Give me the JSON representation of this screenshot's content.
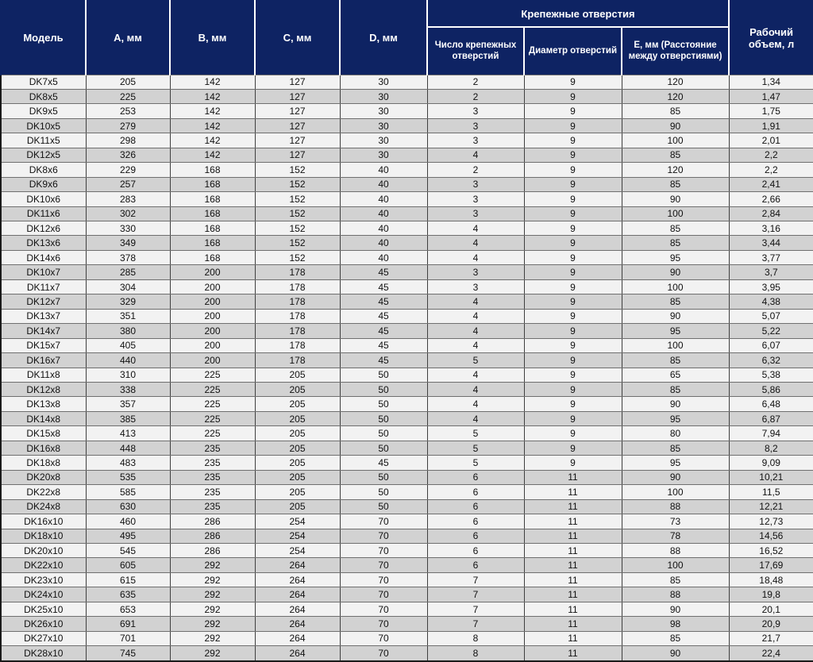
{
  "colors": {
    "header_bg": "#0e2363",
    "header_text": "#ffffff",
    "row_light": "#f2f2f2",
    "row_gray": "#d2d2d2",
    "grid_line": "#6f6f6f"
  },
  "header": {
    "model": "Модель",
    "a": "A, мм",
    "b": "B, мм",
    "c": "C, мм",
    "d": "D, мм",
    "group": "Крепежные отверстия",
    "holes_count": "Число крепежных отверстий",
    "hole_diameter": "Диаметр отверстий",
    "e": "E, мм (Расстояние между отверстиями)",
    "volume": "Рабочий объем, л"
  },
  "column_keys": [
    "model",
    "a",
    "b",
    "c",
    "d",
    "holes_count",
    "hole_diameter",
    "e",
    "volume"
  ],
  "rows": [
    [
      "DK7x5",
      "205",
      "142",
      "127",
      "30",
      "2",
      "9",
      "120",
      "1,34"
    ],
    [
      "DK8x5",
      "225",
      "142",
      "127",
      "30",
      "2",
      "9",
      "120",
      "1,47"
    ],
    [
      "DK9x5",
      "253",
      "142",
      "127",
      "30",
      "3",
      "9",
      "85",
      "1,75"
    ],
    [
      "DK10x5",
      "279",
      "142",
      "127",
      "30",
      "3",
      "9",
      "90",
      "1,91"
    ],
    [
      "DK11x5",
      "298",
      "142",
      "127",
      "30",
      "3",
      "9",
      "100",
      "2,01"
    ],
    [
      "DK12x5",
      "326",
      "142",
      "127",
      "30",
      "4",
      "9",
      "85",
      "2,2"
    ],
    [
      "DK8x6",
      "229",
      "168",
      "152",
      "40",
      "2",
      "9",
      "120",
      "2,2"
    ],
    [
      "DK9x6",
      "257",
      "168",
      "152",
      "40",
      "3",
      "9",
      "85",
      "2,41"
    ],
    [
      "DK10x6",
      "283",
      "168",
      "152",
      "40",
      "3",
      "9",
      "90",
      "2,66"
    ],
    [
      "DK11x6",
      "302",
      "168",
      "152",
      "40",
      "3",
      "9",
      "100",
      "2,84"
    ],
    [
      "DK12x6",
      "330",
      "168",
      "152",
      "40",
      "4",
      "9",
      "85",
      "3,16"
    ],
    [
      "DK13x6",
      "349",
      "168",
      "152",
      "40",
      "4",
      "9",
      "85",
      "3,44"
    ],
    [
      "DK14x6",
      "378",
      "168",
      "152",
      "40",
      "4",
      "9",
      "95",
      "3,77"
    ],
    [
      "DK10x7",
      "285",
      "200",
      "178",
      "45",
      "3",
      "9",
      "90",
      "3,7"
    ],
    [
      "DK11x7",
      "304",
      "200",
      "178",
      "45",
      "3",
      "9",
      "100",
      "3,95"
    ],
    [
      "DK12x7",
      "329",
      "200",
      "178",
      "45",
      "4",
      "9",
      "85",
      "4,38"
    ],
    [
      "DK13x7",
      "351",
      "200",
      "178",
      "45",
      "4",
      "9",
      "90",
      "5,07"
    ],
    [
      "DK14x7",
      "380",
      "200",
      "178",
      "45",
      "4",
      "9",
      "95",
      "5,22"
    ],
    [
      "DK15x7",
      "405",
      "200",
      "178",
      "45",
      "4",
      "9",
      "100",
      "6,07"
    ],
    [
      "DK16x7",
      "440",
      "200",
      "178",
      "45",
      "5",
      "9",
      "85",
      "6,32"
    ],
    [
      "DK11x8",
      "310",
      "225",
      "205",
      "50",
      "4",
      "9",
      "65",
      "5,38"
    ],
    [
      "DK12x8",
      "338",
      "225",
      "205",
      "50",
      "4",
      "9",
      "85",
      "5,86"
    ],
    [
      "DK13x8",
      "357",
      "225",
      "205",
      "50",
      "4",
      "9",
      "90",
      "6,48"
    ],
    [
      "DK14x8",
      "385",
      "225",
      "205",
      "50",
      "4",
      "9",
      "95",
      "6,87"
    ],
    [
      "DK15x8",
      "413",
      "225",
      "205",
      "50",
      "5",
      "9",
      "80",
      "7,94"
    ],
    [
      "DK16x8",
      "448",
      "235",
      "205",
      "50",
      "5",
      "9",
      "85",
      "8,2"
    ],
    [
      "DK18x8",
      "483",
      "235",
      "205",
      "45",
      "5",
      "9",
      "95",
      "9,09"
    ],
    [
      "DK20x8",
      "535",
      "235",
      "205",
      "50",
      "6",
      "11",
      "90",
      "10,21"
    ],
    [
      "DK22x8",
      "585",
      "235",
      "205",
      "50",
      "6",
      "11",
      "100",
      "11,5"
    ],
    [
      "DK24x8",
      "630",
      "235",
      "205",
      "50",
      "6",
      "11",
      "88",
      "12,21"
    ],
    [
      "DK16x10",
      "460",
      "286",
      "254",
      "70",
      "6",
      "11",
      "73",
      "12,73"
    ],
    [
      "DK18x10",
      "495",
      "286",
      "254",
      "70",
      "6",
      "11",
      "78",
      "14,56"
    ],
    [
      "DK20x10",
      "545",
      "286",
      "254",
      "70",
      "6",
      "11",
      "88",
      "16,52"
    ],
    [
      "DK22x10",
      "605",
      "292",
      "264",
      "70",
      "6",
      "11",
      "100",
      "17,69"
    ],
    [
      "DK23x10",
      "615",
      "292",
      "264",
      "70",
      "7",
      "11",
      "85",
      "18,48"
    ],
    [
      "DK24x10",
      "635",
      "292",
      "264",
      "70",
      "7",
      "11",
      "88",
      "19,8"
    ],
    [
      "DK25x10",
      "653",
      "292",
      "264",
      "70",
      "7",
      "11",
      "90",
      "20,1"
    ],
    [
      "DK26x10",
      "691",
      "292",
      "264",
      "70",
      "7",
      "11",
      "98",
      "20,9"
    ],
    [
      "DK27x10",
      "701",
      "292",
      "264",
      "70",
      "8",
      "11",
      "85",
      "21,7"
    ],
    [
      "DK28x10",
      "745",
      "292",
      "264",
      "70",
      "8",
      "11",
      "90",
      "22,4"
    ]
  ]
}
